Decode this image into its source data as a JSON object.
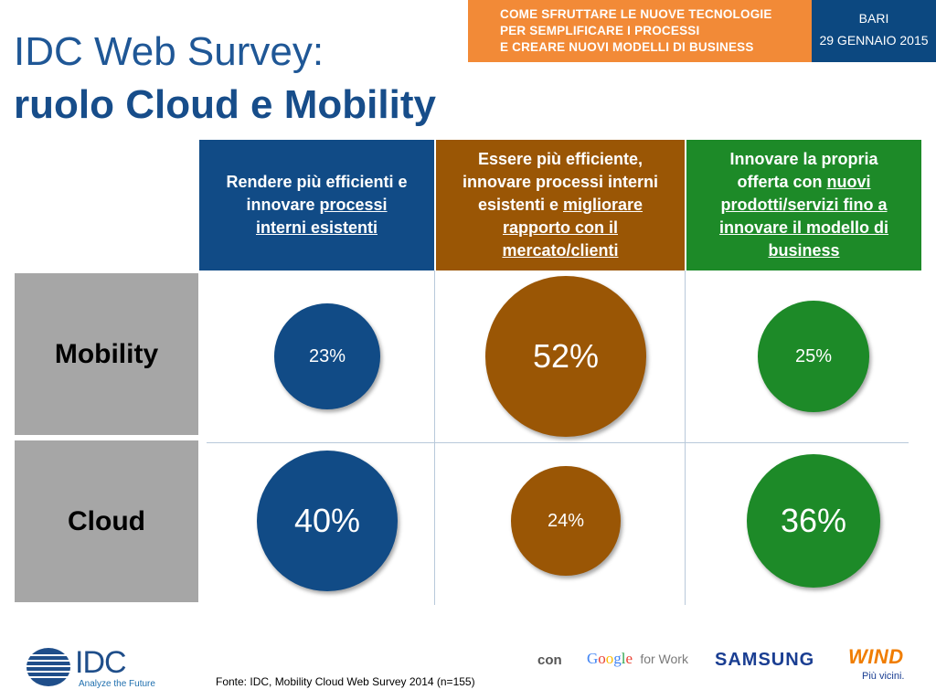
{
  "banner": {
    "lines": [
      "COME SFRUTTARE LE NUOVE TECNOLOGIE",
      "PER SEMPLIFICARE I PROCESSI",
      "E CREARE NUOVI MODELLI DI BUSINESS"
    ],
    "city": "BARI",
    "date": "29 GENNAIO 2015",
    "colors": {
      "orange": "#f28a37",
      "blue": "#0c4880"
    }
  },
  "title": {
    "line1": "IDC Web Survey:",
    "line2": "ruolo Cloud e Mobility"
  },
  "columns": [
    {
      "color": "#114b86",
      "lines": [
        [
          {
            "t": "Rendere più efficienti e",
            "u": false
          }
        ],
        [
          {
            "t": "innovare ",
            "u": false
          },
          {
            "t": "processi",
            "u": true
          }
        ],
        [
          {
            "t": "interni esistenti",
            "u": true
          }
        ]
      ]
    },
    {
      "color": "#9a5605",
      "lines": [
        [
          {
            "t": "Essere più efficiente,",
            "u": false
          }
        ],
        [
          {
            "t": "innovare processi interni",
            "u": false
          }
        ],
        [
          {
            "t": "esistenti e ",
            "u": false
          },
          {
            "t": "migliorare",
            "u": true
          }
        ],
        [
          {
            "t": "rapporto con il",
            "u": true
          }
        ],
        [
          {
            "t": "mercato/clienti",
            "u": true
          }
        ]
      ]
    },
    {
      "color": "#1d8a28",
      "lines": [
        [
          {
            "t": "Innovare la propria",
            "u": false
          }
        ],
        [
          {
            "t": "offerta con ",
            "u": false
          },
          {
            "t": "nuovi",
            "u": true
          }
        ],
        [
          {
            "t": "prodotti/servizi fino a",
            "u": true
          }
        ],
        [
          {
            "t": "innovare il modello di",
            "u": true
          }
        ],
        [
          {
            "t": "business",
            "u": true
          }
        ]
      ]
    }
  ],
  "rows": [
    {
      "label": "Mobility",
      "values": [
        "23%",
        "52%",
        "25%"
      ]
    },
    {
      "label": "Cloud",
      "values": [
        "40%",
        "24%",
        "36%"
      ]
    }
  ],
  "bubble_values": [
    [
      23,
      52,
      25
    ],
    [
      40,
      24,
      36
    ]
  ],
  "footer": {
    "source": "Fonte: IDC, Mobility Cloud Web Survey 2014 (n=155)",
    "idc_name": "IDC",
    "idc_tagline": "Analyze the Future",
    "con": "con",
    "google_word": "Google",
    "google_suffix": "for Work",
    "samsung": "SAMSUNG",
    "wind_name": "WIND",
    "wind_tagline": "Più vicini."
  }
}
